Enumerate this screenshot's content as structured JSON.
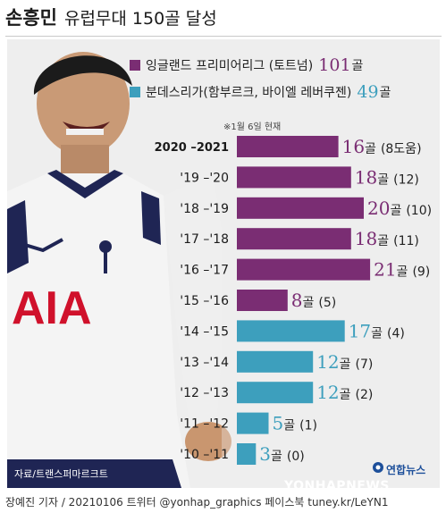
{
  "header": {
    "title": "손흥민",
    "subtitle": "유럽무대 150골 달성"
  },
  "legend": [
    {
      "label": "잉글랜드 프리미어리그 (토트넘)",
      "value": "101",
      "unit": "골",
      "color": "#7a2d73",
      "value_color": "#7a2d73"
    },
    {
      "label": "분데스리가(함부르크, 바이엘 레버쿠젠)",
      "value": "49",
      "unit": "골",
      "color": "#3d9fbd",
      "value_color": "#3d9fbd"
    }
  ],
  "asof_note": "※1월 6일 현재",
  "photo_credit": "자료/트랜스퍼마르크트",
  "footer": "장예진 기자 / 20210106 트위터 @yonhap_graphics  페이스북 tuney.kr/LeYN1",
  "logo": {
    "kr": "연합뉴스",
    "en": "YONHAPNEWS"
  },
  "colors": {
    "premier_league": "#7a2d73",
    "bundesliga": "#3d9fbd",
    "background": "#eeeeee"
  },
  "chart_data": {
    "type": "bar",
    "orientation": "horizontal",
    "unit": "골",
    "categories": [
      "2020 –2021",
      "'19 –'20",
      "'18 –'19",
      "'17 –'18",
      "'16 –'17",
      "'15 –'16",
      "'14 –'15",
      "'13 –'14",
      "'12 –'13",
      "'11 –'12",
      "'10 –'11"
    ],
    "values": [
      16,
      18,
      20,
      18,
      21,
      8,
      17,
      12,
      12,
      5,
      3
    ],
    "assists": [
      8,
      12,
      10,
      11,
      9,
      5,
      4,
      7,
      2,
      1,
      0
    ],
    "league": [
      "premier",
      "premier",
      "premier",
      "premier",
      "premier",
      "premier",
      "bundesliga",
      "bundesliga",
      "bundesliga",
      "bundesliga",
      "bundesliga"
    ],
    "value_labels": [
      "16",
      "18",
      "20",
      "18",
      "21",
      "8",
      "17",
      "12",
      "12",
      "5",
      "3"
    ],
    "secondary_labels": [
      "(8도움)",
      "(12)",
      "(10)",
      "(11)",
      "(9)",
      "(5)",
      "(4)",
      "(7)",
      "(2)",
      "(1)",
      "(0)"
    ],
    "series": [
      {
        "name": "잉글랜드 프리미어리그 (토트넘)",
        "total": 101
      },
      {
        "name": "분데스리가(함부르크, 바이엘 레버쿠젠)",
        "total": 49
      }
    ]
  }
}
